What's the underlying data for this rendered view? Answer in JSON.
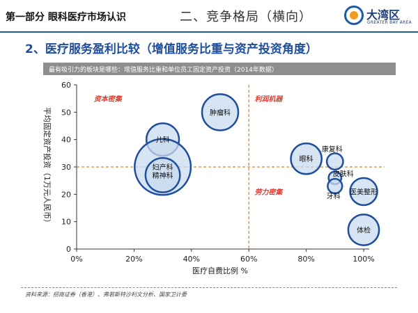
{
  "header": {
    "left_title": "第一部分  眼科医疗市场认识",
    "center_title": "二、竞争格局（横向）",
    "logo_name": "大湾区",
    "logo_sub": "GREATER BAY AREA",
    "logo_colors": {
      "ring": "#1f5aa6",
      "dot": "#f29b1d"
    }
  },
  "section_title": "2、医疗服务盈利比较（增值服务比重与资产投资角度）",
  "banner_text": "最有吸引力的板块是哪些：增值服务比重和单位员工固定资产投资（2014年数据）",
  "footer": {
    "source": "资料来源：招商证券（香港）、弗若斯特沙利文分析、国家卫计委"
  },
  "chart_data": {
    "type": "scatter",
    "title": "",
    "xlabel": "医疗自费比例 %",
    "ylabel": "平均固定资产投资（1万元人民币）",
    "xlim": [
      0,
      100
    ],
    "ylim": [
      0,
      60
    ],
    "x_ticks": [
      "0%",
      "20%",
      "40%",
      "60%",
      "80%",
      "100%"
    ],
    "x_tick_values": [
      0,
      20,
      40,
      60,
      80,
      100
    ],
    "y_ticks": [
      0,
      10,
      20,
      30,
      40,
      50,
      60
    ],
    "reference_lines": {
      "x": 60,
      "y": 30
    },
    "quadrant_labels": [
      "资本密集",
      "利润机器",
      "劳力密集"
    ],
    "points": [
      {
        "name": "肿瘤科",
        "x": 50,
        "y": 50,
        "size": 1.0
      },
      {
        "name": "儿科",
        "x": 30,
        "y": 40,
        "size": 0.9
      },
      {
        "name": "妇产科",
        "x": 30,
        "y": 30,
        "size": 1.55
      },
      {
        "name": "精神科",
        "x": 30,
        "y": 27,
        "size": 0.95
      },
      {
        "name": "眼科",
        "x": 80,
        "y": 33,
        "size": 0.85
      },
      {
        "name": "康复科",
        "x": 90,
        "y": 32,
        "size": 0.45
      },
      {
        "name": "皮肤科",
        "x": 90,
        "y": 26,
        "size": 0.35
      },
      {
        "name": "牙科",
        "x": 90,
        "y": 23,
        "size": 0.4
      },
      {
        "name": "医美整形",
        "x": 100,
        "y": 21,
        "size": 0.75
      },
      {
        "name": "体检",
        "x": 100,
        "y": 7,
        "size": 0.85
      }
    ],
    "colors": {
      "bubble_fill": "#c9dbef",
      "bubble_stroke": "#1f4e9c",
      "ref_line": "#e8822a",
      "quadrant_label": "#e03a2d"
    }
  }
}
